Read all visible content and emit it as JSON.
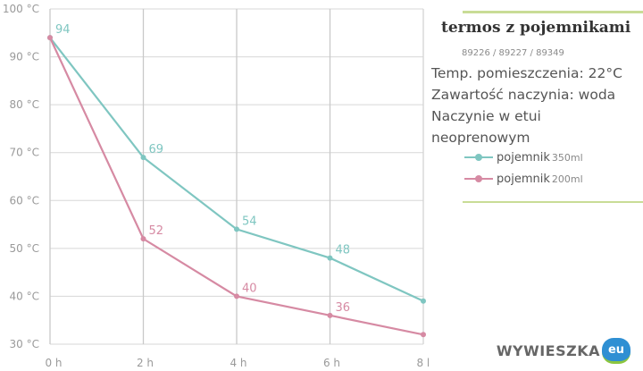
{
  "chart_data": {
    "type": "line",
    "x": [
      "0 h",
      "2 h",
      "4 h",
      "6 h",
      "8 h"
    ],
    "y_ticks": [
      "100 °C",
      "90 °C",
      "80 °C",
      "70 °C",
      "60 °C",
      "50 °C",
      "40 °C",
      "30 °C"
    ],
    "ylim": [
      30,
      100
    ],
    "grid": true,
    "legend_position": "right",
    "series": [
      {
        "name": "pojemnik",
        "unit": "350ml",
        "color": "#7fc6c1",
        "values": [
          94,
          69,
          54,
          48,
          39
        ]
      },
      {
        "name": "pojemnik",
        "unit": "200ml",
        "color": "#d68aa3",
        "values": [
          94,
          52,
          40,
          36,
          32
        ]
      }
    ]
  },
  "panel": {
    "title": "termos z pojemnikami",
    "codes": "89226 / 89227 / 89349",
    "info": [
      "Temp. pomieszczenia: 22°C",
      "Zawartość naczynia: woda",
      "Naczynie w etui",
      "neoprenowym"
    ]
  },
  "logo": {
    "text": "WYWIESZKA",
    "badge": "eu"
  }
}
